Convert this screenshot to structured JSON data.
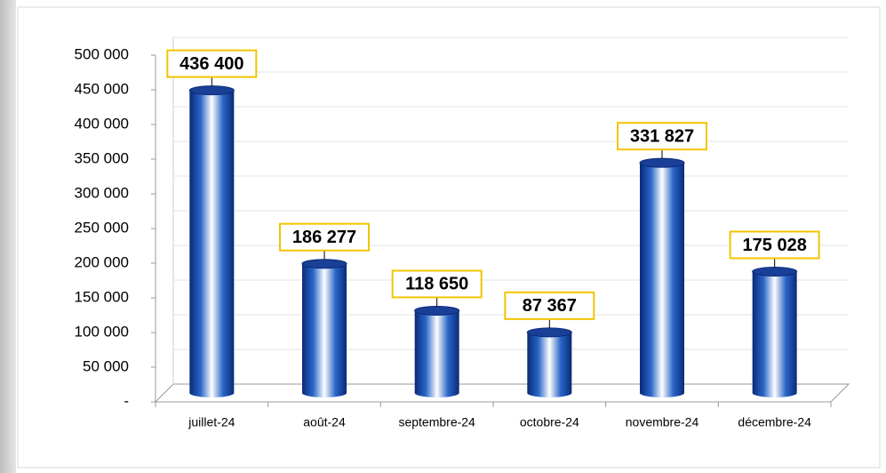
{
  "chart_data": {
    "type": "bar",
    "categories": [
      "juillet-24",
      "août-24",
      "septembre-24",
      "octobre-24",
      "novembre-24",
      "décembre-24"
    ],
    "values": [
      436400,
      186277,
      118650,
      87367,
      331827,
      175028
    ],
    "value_labels": [
      "436 400",
      "186 277",
      "118 650",
      "87 367",
      "331 827",
      "175 028"
    ],
    "color": "#1f4fa8",
    "ylim": [
      0,
      500000
    ],
    "yticks": [
      {
        "value": 0,
        "label": "-"
      },
      {
        "value": 50000,
        "label": "50 000"
      },
      {
        "value": 100000,
        "label": "100 000"
      },
      {
        "value": 150000,
        "label": "150 000"
      },
      {
        "value": 200000,
        "label": "200 000"
      },
      {
        "value": 250000,
        "label": "250 000"
      },
      {
        "value": 300000,
        "label": "300 000"
      },
      {
        "value": 350000,
        "label": "350 000"
      },
      {
        "value": 400000,
        "label": "400 000"
      },
      {
        "value": 450000,
        "label": "450 000"
      },
      {
        "value": 500000,
        "label": "500 000"
      }
    ],
    "grid": true
  }
}
